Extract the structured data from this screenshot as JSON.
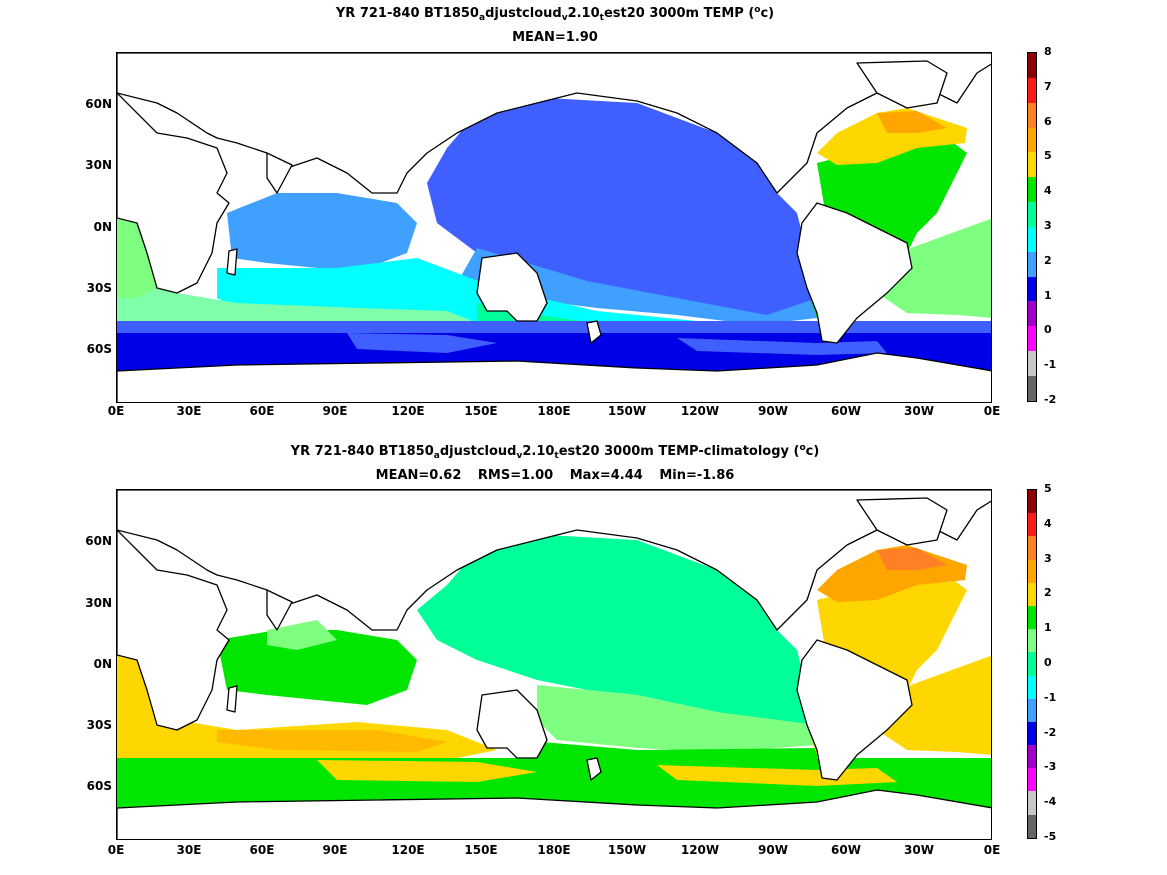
{
  "panels": [
    {
      "title_prefix": "YR 721-840 BT1850",
      "title_sub1": "a",
      "title_mid1": "djustcloud",
      "title_sub2": "v",
      "title_mid2": "2.10",
      "title_sub3": "t",
      "title_mid3": "est20 3000m TEMP (",
      "title_sup": "o",
      "title_end": "c)",
      "stats": [
        "MEAN=1.90"
      ],
      "colorbar_ticks": [
        "8",
        "7",
        "6",
        "5",
        "4",
        "3",
        "2",
        "1",
        "0",
        "-1",
        "-2"
      ],
      "colorbar_colors": [
        "#8b0000",
        "#ff1a1a",
        "#ff7f27",
        "#ffa500",
        "#ffd700",
        "#00e600",
        "#00ff99",
        "#00ffff",
        "#3fa0ff",
        "#0000e6",
        "#a000c8",
        "#ff00ff",
        "#c8c8c8",
        "#646464"
      ]
    },
    {
      "title_prefix": "YR 721-840 BT1850",
      "title_sub1": "a",
      "title_mid1": "djustcloud",
      "title_sub2": "v",
      "title_mid2": "2.10",
      "title_sub3": "t",
      "title_mid3": "est20 3000m TEMP-climatology (",
      "title_sup": "o",
      "title_end": "c)",
      "stats": [
        "MEAN=0.62",
        "RMS=1.00",
        "Max=4.44",
        "Min=-1.86"
      ],
      "colorbar_ticks": [
        "5",
        "4",
        "3",
        "2",
        "1",
        "0",
        "-1",
        "-2",
        "-3",
        "-4",
        "-5"
      ],
      "colorbar_colors": [
        "#8b0000",
        "#ff1a1a",
        "#ff7f27",
        "#ffa500",
        "#ffd700",
        "#00e600",
        "#7fff7f",
        "#00ff99",
        "#00ffff",
        "#3fa0ff",
        "#0000e6",
        "#a000c8",
        "#ff00ff",
        "#c8c8c8",
        "#646464"
      ]
    }
  ],
  "x_ticks": [
    "0E",
    "30E",
    "60E",
    "90E",
    "120E",
    "150E",
    "180E",
    "150W",
    "120W",
    "90W",
    "60W",
    "30W",
    "0E"
  ],
  "y_ticks": [
    "60N",
    "30N",
    "0N",
    "30S",
    "60S"
  ]
}
